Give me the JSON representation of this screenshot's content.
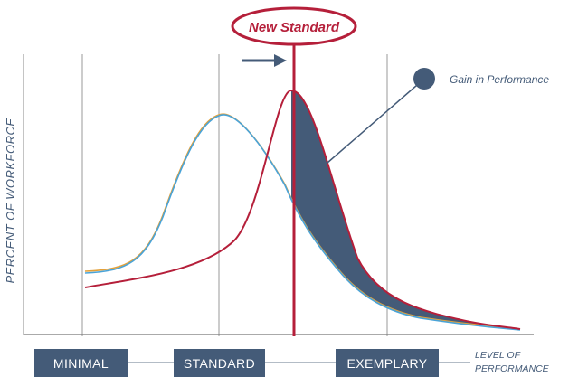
{
  "callout": {
    "label": "New Standard"
  },
  "annotation": {
    "label": "Gain in Performance"
  },
  "y_axis": {
    "label": "PERCENT OF WORKFORCE"
  },
  "x_axis": {
    "label_line1": "LEVEL OF",
    "label_line2": "PERFORMANCE",
    "categories": [
      "MINIMAL",
      "STANDARD",
      "EXEMPLARY"
    ]
  },
  "colors": {
    "slate": "#445b78",
    "crimson": "#b51f3a",
    "orange_curve": "#e3a13b",
    "blue_curve": "#49a3d8",
    "grid": "#888888",
    "connector": "#9aa6b4"
  }
}
